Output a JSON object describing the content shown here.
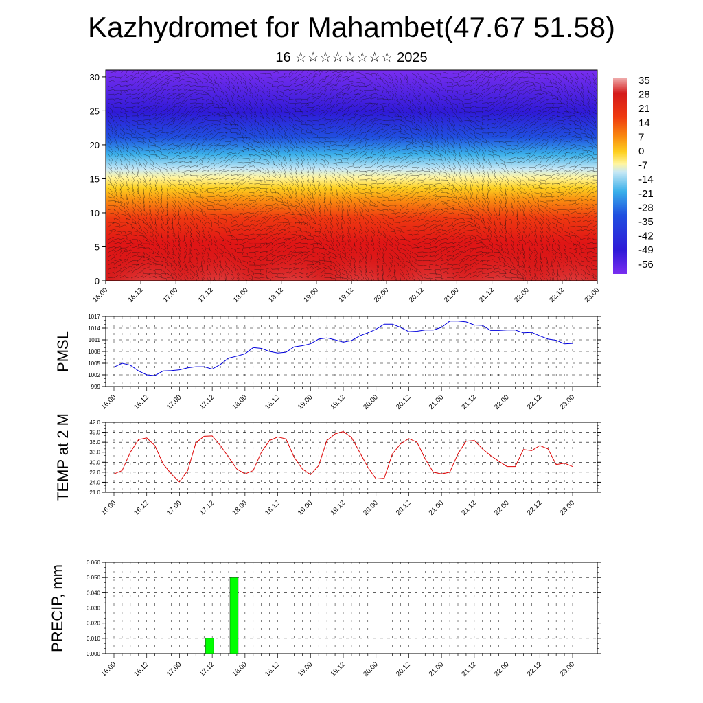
{
  "header": {
    "title": "Kazhydromet for Mahambet(47.67 51.58)",
    "subtitle": "16 ☆☆☆☆☆☆☆☆ 2025"
  },
  "chart_data": [
    {
      "type": "heatmap",
      "panel": "vertical-profile",
      "xlabel": "",
      "ylabel": "",
      "x_tick_labels": [
        "16.00",
        "16.12",
        "17.00",
        "17.12",
        "18.00",
        "18.12",
        "19.00",
        "19.12",
        "20.00",
        "20.12",
        "21.00",
        "21.12",
        "22.00",
        "22.12",
        "23.00"
      ],
      "y_ticks": [
        0,
        5,
        10,
        15,
        20,
        25,
        30
      ],
      "ylim": [
        0,
        31
      ],
      "xlim": [
        0,
        168
      ],
      "colorbar_labels": [
        "35",
        "28",
        "21",
        "14",
        "7",
        "0",
        "-7",
        "-14",
        "-21",
        "-28",
        "-35",
        "-42",
        "-49",
        "-56"
      ],
      "colorbar_range": [
        -60,
        38
      ],
      "overlay": "wind-barbs"
    },
    {
      "type": "line",
      "panel": "pmsl",
      "ylabel": "PMSL",
      "color": "#0000dd",
      "ylim": [
        999,
        1017
      ],
      "y_ticks": [
        999,
        1002,
        1005,
        1008,
        1011,
        1014,
        1017
      ],
      "x_tick_labels": [
        "16.00",
        "16.12",
        "17.00",
        "17.12",
        "18.00",
        "18.12",
        "19.00",
        "19.12",
        "20.00",
        "20.12",
        "21.00",
        "21.12",
        "22.00",
        "22.12",
        "23.00"
      ],
      "x_hours": [
        0,
        3,
        6,
        9,
        12,
        15,
        18,
        21,
        24,
        27,
        30,
        33,
        36,
        39,
        42,
        45,
        48,
        51,
        54,
        57,
        60,
        63,
        66,
        69,
        72,
        75,
        78,
        81,
        84,
        87,
        90,
        93,
        96,
        99,
        102,
        105,
        108,
        111,
        114,
        117,
        120,
        123,
        126,
        129,
        132,
        135,
        138,
        141,
        144,
        147,
        150,
        153,
        156,
        159,
        162,
        165,
        168
      ],
      "values": [
        1004.0,
        1005.0,
        1004.5,
        1003.0,
        1002.0,
        1001.8,
        1003.0,
        1003.1,
        1003.3,
        1003.8,
        1004.1,
        1004.1,
        1003.5,
        1004.7,
        1006.3,
        1006.8,
        1007.4,
        1009.0,
        1008.8,
        1008.0,
        1007.6,
        1007.8,
        1009.2,
        1009.5,
        1010.0,
        1011.2,
        1011.5,
        1011.0,
        1010.4,
        1010.8,
        1012.0,
        1012.8,
        1013.7,
        1015.0,
        1015.0,
        1014.2,
        1013.1,
        1013.2,
        1013.5,
        1013.5,
        1014.2,
        1015.8,
        1015.8,
        1015.6,
        1014.8,
        1014.7,
        1013.4,
        1013.4,
        1013.5,
        1013.5,
        1012.8,
        1012.9,
        1012.0,
        1011.2,
        1010.9,
        1010.0,
        1010.1
      ]
    },
    {
      "type": "line",
      "panel": "temperature",
      "ylabel": "TEMP at 2 M",
      "color": "#dd0000",
      "ylim": [
        21,
        42
      ],
      "y_ticks": [
        "21.0",
        "24.0",
        "27.0",
        "30.0",
        "33.0",
        "36.0",
        "39.0",
        "42.0"
      ],
      "x_tick_labels": [
        "16.00",
        "16.12",
        "17.00",
        "17.12",
        "18.00",
        "18.12",
        "19.00",
        "19.12",
        "20.00",
        "20.12",
        "21.00",
        "21.12",
        "22.00",
        "22.12",
        "23.00"
      ],
      "x_hours": [
        0,
        3,
        6,
        9,
        12,
        15,
        18,
        21,
        24,
        27,
        30,
        33,
        36,
        39,
        42,
        45,
        48,
        51,
        54,
        57,
        60,
        63,
        66,
        69,
        72,
        75,
        78,
        81,
        84,
        87,
        90,
        93,
        96,
        99,
        102,
        105,
        108,
        111,
        114,
        117,
        120,
        123,
        126,
        129,
        132,
        135,
        138,
        141,
        144,
        147,
        150,
        153,
        156,
        159,
        162,
        165,
        168
      ],
      "values": [
        26.5,
        27.5,
        33.0,
        36.8,
        37.3,
        35.0,
        29.5,
        26.5,
        24.1,
        27.5,
        35.8,
        37.8,
        37.9,
        35.0,
        31.5,
        28.0,
        26.5,
        27.5,
        33.0,
        36.5,
        37.6,
        37.0,
        31.5,
        28.0,
        26.3,
        29.0,
        36.5,
        38.5,
        39.2,
        37.5,
        33.0,
        28.5,
        25.0,
        25.2,
        32.5,
        35.5,
        37.1,
        36.0,
        31.0,
        27.0,
        26.5,
        27.0,
        32.5,
        36.3,
        36.5,
        34.0,
        32.0,
        30.3,
        28.7,
        28.7,
        33.8,
        33.5,
        35.0,
        34.0,
        29.3,
        29.7,
        28.7
      ]
    },
    {
      "type": "bar",
      "panel": "precipitation",
      "ylabel": "PRECIP, mm",
      "color": "#00ff00",
      "ylim": [
        0,
        0.06
      ],
      "y_ticks": [
        "0.000",
        "0.010",
        "0.020",
        "0.030",
        "0.040",
        "0.050",
        "0.060"
      ],
      "x_tick_labels": [
        "16.00",
        "16.12",
        "17.00",
        "17.12",
        "18.00",
        "18.12",
        "19.00",
        "19.12",
        "20.00",
        "20.12",
        "21.00",
        "21.12",
        "22.00",
        "22.12",
        "23.00"
      ],
      "bars": [
        {
          "hour": 35,
          "value": 0.01
        },
        {
          "hour": 44,
          "value": 0.05
        }
      ]
    }
  ]
}
